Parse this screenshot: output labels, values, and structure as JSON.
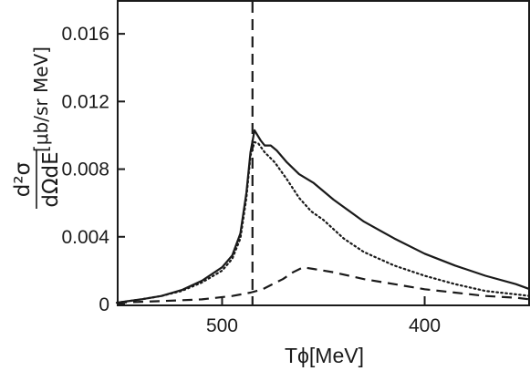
{
  "chart_data": {
    "type": "line",
    "xlabel": "Tϕ[MeV]",
    "ylabel": {
      "numerator": "d²σ",
      "denominator": "dΩdE",
      "unit": "[μb/sr MeV]"
    },
    "x_axis_reversed": true,
    "xlim": [
      552,
      348
    ],
    "ylim": [
      0,
      0.018
    ],
    "x_ticks": [
      500,
      400
    ],
    "x_tick_labels": [
      "500",
      "400"
    ],
    "y_ticks": [
      0,
      0.004,
      0.008,
      0.012,
      0.016
    ],
    "y_tick_labels": [
      "0",
      "0.004",
      "0.008",
      "0.012",
      "0.016"
    ],
    "reference_line": {
      "x": 485,
      "style": "dashed"
    },
    "series": [
      {
        "style": "solid",
        "points": [
          [
            552,
            0.0001
          ],
          [
            540,
            0.0003
          ],
          [
            530,
            0.0005
          ],
          [
            520,
            0.00085
          ],
          [
            510,
            0.0014
          ],
          [
            500,
            0.0022
          ],
          [
            495,
            0.0029
          ],
          [
            491,
            0.0042
          ],
          [
            488,
            0.0066
          ],
          [
            486,
            0.009
          ],
          [
            484,
            0.0103
          ],
          [
            481,
            0.0097
          ],
          [
            479,
            0.0094
          ],
          [
            476,
            0.0094
          ],
          [
            473,
            0.0091
          ],
          [
            468,
            0.0084
          ],
          [
            462,
            0.0077
          ],
          [
            455,
            0.0072
          ],
          [
            445,
            0.0062
          ],
          [
            430,
            0.0049
          ],
          [
            415,
            0.0039
          ],
          [
            400,
            0.003
          ],
          [
            385,
            0.0023
          ],
          [
            370,
            0.0017
          ],
          [
            355,
            0.0012
          ],
          [
            348,
            0.0009
          ]
        ]
      },
      {
        "style": "dotted",
        "points": [
          [
            552,
            0.0001
          ],
          [
            540,
            0.0003
          ],
          [
            530,
            0.0005
          ],
          [
            520,
            0.0008
          ],
          [
            510,
            0.0013
          ],
          [
            500,
            0.002
          ],
          [
            495,
            0.0027
          ],
          [
            491,
            0.0039
          ],
          [
            488,
            0.0063
          ],
          [
            486,
            0.0088
          ],
          [
            484,
            0.0096
          ],
          [
            482,
            0.0095
          ],
          [
            479,
            0.009
          ],
          [
            474,
            0.0084
          ],
          [
            468,
            0.0074
          ],
          [
            462,
            0.0063
          ],
          [
            456,
            0.0055
          ],
          [
            450,
            0.005
          ],
          [
            440,
            0.0039
          ],
          [
            430,
            0.0031
          ],
          [
            415,
            0.0023
          ],
          [
            400,
            0.0017
          ],
          [
            385,
            0.0012
          ],
          [
            370,
            0.0008
          ],
          [
            355,
            0.0006
          ],
          [
            348,
            0.0005
          ]
        ]
      },
      {
        "style": "dashed",
        "points": [
          [
            552,
            0.0001
          ],
          [
            530,
            0.0002
          ],
          [
            510,
            0.0003
          ],
          [
            495,
            0.0005
          ],
          [
            486,
            0.0007
          ],
          [
            480,
            0.0009
          ],
          [
            475,
            0.0012
          ],
          [
            470,
            0.0015
          ],
          [
            465,
            0.0019
          ],
          [
            460,
            0.0022
          ],
          [
            455,
            0.0021
          ],
          [
            445,
            0.0019
          ],
          [
            430,
            0.0015
          ],
          [
            415,
            0.0012
          ],
          [
            400,
            0.0009
          ],
          [
            385,
            0.0007
          ],
          [
            370,
            0.0005
          ],
          [
            355,
            0.0004
          ],
          [
            348,
            0.0003
          ]
        ]
      }
    ]
  }
}
